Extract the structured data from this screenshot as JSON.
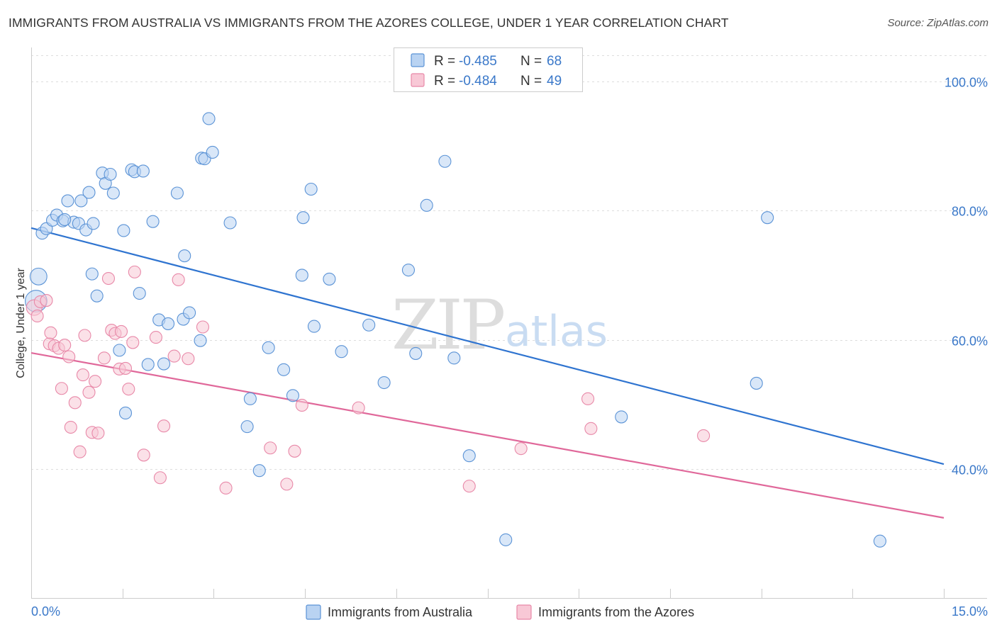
{
  "title": "IMMIGRANTS FROM AUSTRALIA VS IMMIGRANTS FROM THE AZORES COLLEGE, UNDER 1 YEAR CORRELATION CHART",
  "source": "Source: ZipAtlas.com",
  "watermark": {
    "zip": "ZIP",
    "atlas": "atlas"
  },
  "legend": {
    "r_label": "R =",
    "n_label": "N =",
    "rows": [
      {
        "r": "-0.485",
        "n": "68"
      },
      {
        "r": "-0.484",
        "n": "49"
      }
    ]
  },
  "bottom_legend": [
    "Immigrants from Australia",
    "Immigrants from the Azores"
  ],
  "colors": {
    "blue_fill": "#b9d3f2",
    "blue_stroke": "#5b93d6",
    "blue_line": "#2f74d0",
    "pink_fill": "#f8c8d6",
    "pink_stroke": "#e888a8",
    "pink_line": "#e0689a",
    "tick_text": "#3a78c9",
    "grid": "#dddddd"
  },
  "chart_data": {
    "type": "scatter",
    "ylabel": "College, Under 1 year",
    "xlabel": "",
    "xlim": [
      0,
      15
    ],
    "ylim": [
      20,
      104
    ],
    "x_tick_labels": [
      "0.0%",
      "15.0%"
    ],
    "y_ticks": [
      40,
      60,
      80,
      100
    ],
    "y_tick_labels": [
      "40.0%",
      "60.0%",
      "80.0%",
      "100.0%"
    ],
    "grid": true,
    "legend_position": "top-center",
    "series": [
      {
        "name": "Immigrants from Australia",
        "color": "#5b93d6",
        "trend": {
          "x": [
            0,
            15
          ],
          "y": [
            77.3,
            40.8
          ]
        },
        "points": [
          {
            "x": 0.12,
            "y": 69.8,
            "s": 1.4
          },
          {
            "x": 0.08,
            "y": 66.0,
            "s": 1.8
          },
          {
            "x": 0.18,
            "y": 76.5
          },
          {
            "x": 0.25,
            "y": 77.2
          },
          {
            "x": 0.35,
            "y": 78.5
          },
          {
            "x": 0.42,
            "y": 79.3
          },
          {
            "x": 0.52,
            "y": 78.4
          },
          {
            "x": 0.6,
            "y": 81.5
          },
          {
            "x": 0.7,
            "y": 78.2
          },
          {
            "x": 0.78,
            "y": 78.0
          },
          {
            "x": 0.82,
            "y": 81.5
          },
          {
            "x": 0.9,
            "y": 77.0
          },
          {
            "x": 0.95,
            "y": 82.8
          },
          {
            "x": 1.0,
            "y": 70.2
          },
          {
            "x": 1.08,
            "y": 66.8
          },
          {
            "x": 1.17,
            "y": 85.8
          },
          {
            "x": 1.22,
            "y": 84.2
          },
          {
            "x": 1.3,
            "y": 85.6
          },
          {
            "x": 1.35,
            "y": 82.7
          },
          {
            "x": 1.52,
            "y": 76.9
          },
          {
            "x": 1.55,
            "y": 48.7
          },
          {
            "x": 1.65,
            "y": 86.3
          },
          {
            "x": 1.7,
            "y": 86.0
          },
          {
            "x": 1.84,
            "y": 86.1
          },
          {
            "x": 1.78,
            "y": 67.2
          },
          {
            "x": 1.92,
            "y": 56.2
          },
          {
            "x": 2.0,
            "y": 78.3
          },
          {
            "x": 2.1,
            "y": 63.1
          },
          {
            "x": 2.18,
            "y": 56.3
          },
          {
            "x": 2.25,
            "y": 62.5
          },
          {
            "x": 2.4,
            "y": 82.7
          },
          {
            "x": 2.5,
            "y": 63.2
          },
          {
            "x": 2.52,
            "y": 73.0
          },
          {
            "x": 2.6,
            "y": 64.2
          },
          {
            "x": 2.78,
            "y": 59.9
          },
          {
            "x": 2.8,
            "y": 88.1
          },
          {
            "x": 2.85,
            "y": 88.0
          },
          {
            "x": 2.92,
            "y": 94.2
          },
          {
            "x": 2.98,
            "y": 89.0
          },
          {
            "x": 3.27,
            "y": 78.1
          },
          {
            "x": 3.6,
            "y": 50.9
          },
          {
            "x": 3.55,
            "y": 46.6
          },
          {
            "x": 3.75,
            "y": 39.8
          },
          {
            "x": 3.9,
            "y": 58.8
          },
          {
            "x": 4.15,
            "y": 55.4
          },
          {
            "x": 4.3,
            "y": 51.4
          },
          {
            "x": 4.45,
            "y": 70.0
          },
          {
            "x": 4.47,
            "y": 78.9
          },
          {
            "x": 4.6,
            "y": 83.3
          },
          {
            "x": 4.65,
            "y": 62.1
          },
          {
            "x": 4.9,
            "y": 69.4
          },
          {
            "x": 5.1,
            "y": 58.2
          },
          {
            "x": 5.55,
            "y": 62.3
          },
          {
            "x": 5.8,
            "y": 53.4
          },
          {
            "x": 6.2,
            "y": 70.8
          },
          {
            "x": 6.32,
            "y": 57.9
          },
          {
            "x": 6.5,
            "y": 80.8
          },
          {
            "x": 6.8,
            "y": 87.6
          },
          {
            "x": 6.95,
            "y": 57.2
          },
          {
            "x": 7.2,
            "y": 42.1
          },
          {
            "x": 7.8,
            "y": 29.1
          },
          {
            "x": 9.7,
            "y": 48.1
          },
          {
            "x": 11.92,
            "y": 53.3
          },
          {
            "x": 12.1,
            "y": 78.9
          },
          {
            "x": 13.95,
            "y": 28.9
          },
          {
            "x": 1.45,
            "y": 58.4
          },
          {
            "x": 0.55,
            "y": 78.6
          },
          {
            "x": 1.02,
            "y": 78.0
          }
        ]
      },
      {
        "name": "Immigrants from the Azores",
        "color": "#e888a8",
        "trend": {
          "x": [
            0,
            15
          ],
          "y": [
            58.0,
            32.5
          ]
        },
        "points": [
          {
            "x": 0.05,
            "y": 65.0,
            "s": 1.3
          },
          {
            "x": 0.1,
            "y": 63.7
          },
          {
            "x": 0.15,
            "y": 65.9
          },
          {
            "x": 0.25,
            "y": 66.1
          },
          {
            "x": 0.3,
            "y": 59.4
          },
          {
            "x": 0.32,
            "y": 61.1
          },
          {
            "x": 0.38,
            "y": 59.1
          },
          {
            "x": 0.45,
            "y": 58.7
          },
          {
            "x": 0.5,
            "y": 52.5
          },
          {
            "x": 0.55,
            "y": 59.2
          },
          {
            "x": 0.62,
            "y": 57.4
          },
          {
            "x": 0.65,
            "y": 46.5
          },
          {
            "x": 0.72,
            "y": 50.3
          },
          {
            "x": 0.8,
            "y": 42.7
          },
          {
            "x": 0.85,
            "y": 54.6
          },
          {
            "x": 0.88,
            "y": 60.7
          },
          {
            "x": 0.95,
            "y": 51.9
          },
          {
            "x": 1.0,
            "y": 45.7
          },
          {
            "x": 1.05,
            "y": 53.6
          },
          {
            "x": 1.1,
            "y": 45.6
          },
          {
            "x": 1.2,
            "y": 57.2
          },
          {
            "x": 1.27,
            "y": 69.5
          },
          {
            "x": 1.32,
            "y": 61.5
          },
          {
            "x": 1.38,
            "y": 61.0
          },
          {
            "x": 1.45,
            "y": 55.5
          },
          {
            "x": 1.48,
            "y": 61.3
          },
          {
            "x": 1.55,
            "y": 55.6
          },
          {
            "x": 1.6,
            "y": 52.4
          },
          {
            "x": 1.67,
            "y": 59.6
          },
          {
            "x": 1.7,
            "y": 70.5
          },
          {
            "x": 1.85,
            "y": 42.2
          },
          {
            "x": 2.05,
            "y": 60.4
          },
          {
            "x": 2.12,
            "y": 38.7
          },
          {
            "x": 2.18,
            "y": 46.7
          },
          {
            "x": 2.35,
            "y": 57.5
          },
          {
            "x": 2.42,
            "y": 69.3
          },
          {
            "x": 2.58,
            "y": 57.1
          },
          {
            "x": 2.82,
            "y": 62.0
          },
          {
            "x": 3.2,
            "y": 37.1
          },
          {
            "x": 3.93,
            "y": 43.3
          },
          {
            "x": 4.2,
            "y": 37.7
          },
          {
            "x": 4.33,
            "y": 42.8
          },
          {
            "x": 4.45,
            "y": 49.9
          },
          {
            "x": 5.38,
            "y": 49.5
          },
          {
            "x": 7.2,
            "y": 37.4
          },
          {
            "x": 8.05,
            "y": 43.2
          },
          {
            "x": 9.15,
            "y": 50.9
          },
          {
            "x": 9.2,
            "y": 46.3
          },
          {
            "x": 11.05,
            "y": 45.2
          }
        ]
      }
    ]
  }
}
